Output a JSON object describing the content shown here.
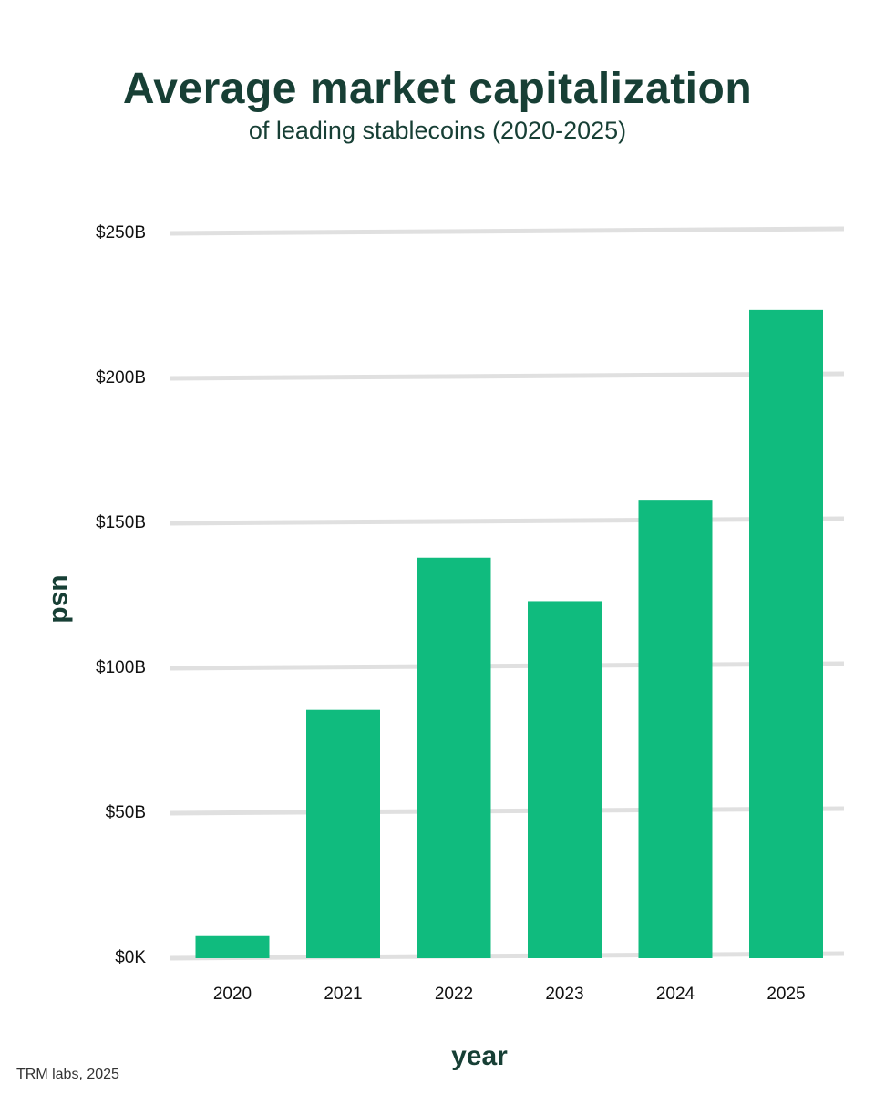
{
  "chart_data": {
    "type": "bar",
    "title": "Average market capitalization",
    "subtitle": "of leading stablecoins (2020-2025)",
    "xlabel": "year",
    "ylabel": "usd",
    "categories": [
      "2020",
      "2021",
      "2022",
      "2023",
      "2024",
      "2025"
    ],
    "values": [
      7,
      85,
      137.5,
      122.5,
      157.5,
      223
    ],
    "unit": "B",
    "ylim": [
      0,
      250
    ],
    "yticks": [
      0,
      50,
      100,
      150,
      200,
      250
    ],
    "ytick_labels": [
      "$0K",
      "$50B",
      "$100B",
      "$150B",
      "$200B",
      "$250B"
    ],
    "grid": true,
    "bar_color": "#10bb7e",
    "grid_color": "#e0e0e0"
  },
  "source": "TRM labs, 2025"
}
